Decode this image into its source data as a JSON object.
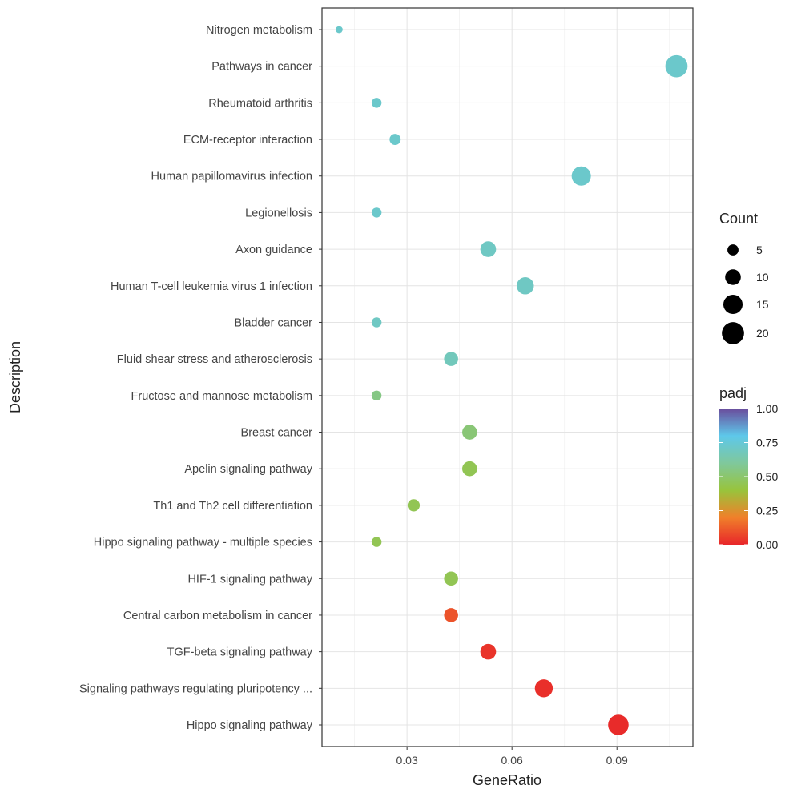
{
  "chart_data": {
    "type": "scatter",
    "xlabel": "GeneRatio",
    "ylabel": "Description",
    "xlim": [
      0.0057,
      0.1117
    ],
    "x_ticks": [
      0.03,
      0.06,
      0.09
    ],
    "x_tick_labels": [
      "0.03",
      "0.06",
      "0.09"
    ],
    "grid": true,
    "legend_placement": "right",
    "size_legend": {
      "title": "Count",
      "values": [
        5,
        10,
        15,
        20
      ],
      "labels": [
        "5",
        "10",
        "15",
        "20"
      ]
    },
    "color_legend": {
      "title": "padj",
      "range": [
        0,
        1
      ],
      "ticks": [
        1.0,
        0.75,
        0.5,
        0.25,
        0.0
      ],
      "tick_labels": [
        "1.00",
        "0.75",
        "0.50",
        "0.25",
        "0.00"
      ],
      "colors": [
        "#e8262a",
        "#f0802a",
        "#98c43c",
        "#7fc89c",
        "#5ec8ea",
        "#6a4c9c"
      ]
    },
    "points": [
      {
        "description": "Nitrogen metabolism",
        "gene_ratio": 0.0106,
        "count": 2,
        "padj": 0.72
      },
      {
        "description": "Pathways in cancer",
        "gene_ratio": 0.107,
        "count": 20,
        "padj": 0.72
      },
      {
        "description": "Rheumatoid arthritis",
        "gene_ratio": 0.0213,
        "count": 4,
        "padj": 0.72
      },
      {
        "description": "ECM-receptor interaction",
        "gene_ratio": 0.0266,
        "count": 5,
        "padj": 0.72
      },
      {
        "description": "Human papillomavirus infection",
        "gene_ratio": 0.0798,
        "count": 15,
        "padj": 0.72
      },
      {
        "description": "Legionellosis",
        "gene_ratio": 0.0213,
        "count": 4,
        "padj": 0.72
      },
      {
        "description": "Axon guidance",
        "gene_ratio": 0.0532,
        "count": 10,
        "padj": 0.7
      },
      {
        "description": "Human T-cell leukemia virus 1 infection",
        "gene_ratio": 0.0638,
        "count": 12,
        "padj": 0.7
      },
      {
        "description": "Bladder cancer",
        "gene_ratio": 0.0213,
        "count": 4,
        "padj": 0.7
      },
      {
        "description": "Fluid shear stress and atherosclerosis",
        "gene_ratio": 0.0426,
        "count": 8,
        "padj": 0.68
      },
      {
        "description": "Fructose and mannose metabolism",
        "gene_ratio": 0.0213,
        "count": 4,
        "padj": 0.55
      },
      {
        "description": "Breast cancer",
        "gene_ratio": 0.0479,
        "count": 9,
        "padj": 0.52
      },
      {
        "description": "Apelin signaling pathway",
        "gene_ratio": 0.0479,
        "count": 9,
        "padj": 0.45
      },
      {
        "description": "Th1 and Th2 cell differentiation",
        "gene_ratio": 0.0319,
        "count": 6,
        "padj": 0.45
      },
      {
        "description": "Hippo signaling pathway - multiple species",
        "gene_ratio": 0.0213,
        "count": 4,
        "padj": 0.45
      },
      {
        "description": "HIF-1 signaling pathway",
        "gene_ratio": 0.0426,
        "count": 8,
        "padj": 0.45
      },
      {
        "description": "Central carbon metabolism in cancer",
        "gene_ratio": 0.0426,
        "count": 8,
        "padj": 0.1
      },
      {
        "description": "TGF-beta signaling pathway",
        "gene_ratio": 0.0532,
        "count": 10,
        "padj": 0.03
      },
      {
        "description": "Signaling pathways regulating pluripotency ...",
        "gene_ratio": 0.0691,
        "count": 13,
        "padj": 0.02
      },
      {
        "description": "Hippo signaling pathway",
        "gene_ratio": 0.0904,
        "count": 17,
        "padj": 0.01
      }
    ]
  }
}
